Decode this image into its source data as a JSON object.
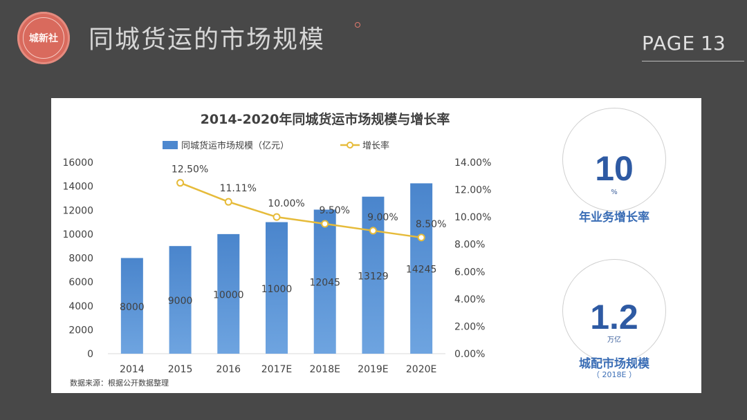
{
  "header": {
    "title": "同城货运的市场规模",
    "logo_text": "城新社",
    "page_label": "PAGE",
    "page_number": "13"
  },
  "chart_data": {
    "type": "bar",
    "title": "2014-2020年同城货运市场规模与增长率",
    "categories": [
      "2014",
      "2015",
      "2016",
      "2017E",
      "2018E",
      "2019E",
      "2020E"
    ],
    "series": [
      {
        "name": "同城货运市场规模（亿元）",
        "type": "bar",
        "axis": "left",
        "values": [
          8000,
          9000,
          10000,
          11000,
          12045,
          13129,
          14245
        ],
        "labels": [
          "8000",
          "9000",
          "10000",
          "11000",
          "12045",
          "13129",
          "14245"
        ]
      },
      {
        "name": "增长率",
        "type": "line",
        "axis": "right",
        "values": [
          null,
          12.5,
          11.11,
          10.0,
          9.5,
          9.0,
          8.5
        ],
        "labels": [
          "",
          "12.50%",
          "11.11%",
          "10.00%",
          "9.50%",
          "9.00%",
          "8.50%"
        ]
      }
    ],
    "y_left": {
      "min": 0,
      "max": 16000,
      "ticks": [
        "0",
        "2000",
        "4000",
        "6000",
        "8000",
        "10000",
        "12000",
        "14000",
        "16000"
      ]
    },
    "y_right": {
      "min": 0,
      "max": 14,
      "ticks": [
        "0.00%",
        "2.00%",
        "4.00%",
        "6.00%",
        "8.00%",
        "10.00%",
        "12.00%",
        "14.00%"
      ]
    },
    "legend_position": "top-center",
    "source": "数据来源：根据公开数据整理",
    "colors": {
      "bar": "#4d88cf",
      "bar_light": "#6ea4e0",
      "line": "#e6bb3a",
      "marker_fill": "#ffffff"
    }
  },
  "kpis": [
    {
      "value": "10",
      "unit": "%",
      "label": "年业务增长率",
      "sub": ""
    },
    {
      "value": "1.2",
      "unit": "万亿",
      "label": "城配市场规模",
      "sub": "（ 2018E ）"
    }
  ]
}
